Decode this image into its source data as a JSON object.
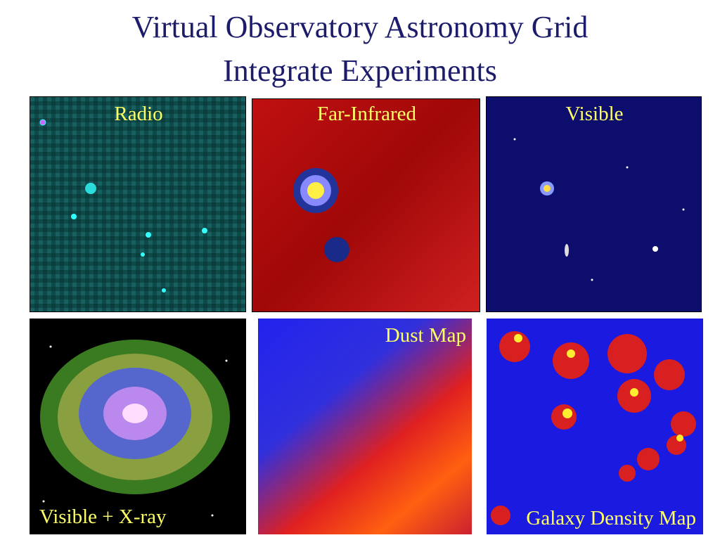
{
  "title": [
    "Virtual Observatory Astronomy Grid",
    "Integrate Experiments"
  ],
  "panels": [
    {
      "label": "Radio"
    },
    {
      "label": "Far-Infrared"
    },
    {
      "label": "Visible"
    },
    {
      "label": "Visible + X-ray"
    },
    {
      "label": "Dust Map"
    },
    {
      "label": "Galaxy Density Map"
    }
  ]
}
